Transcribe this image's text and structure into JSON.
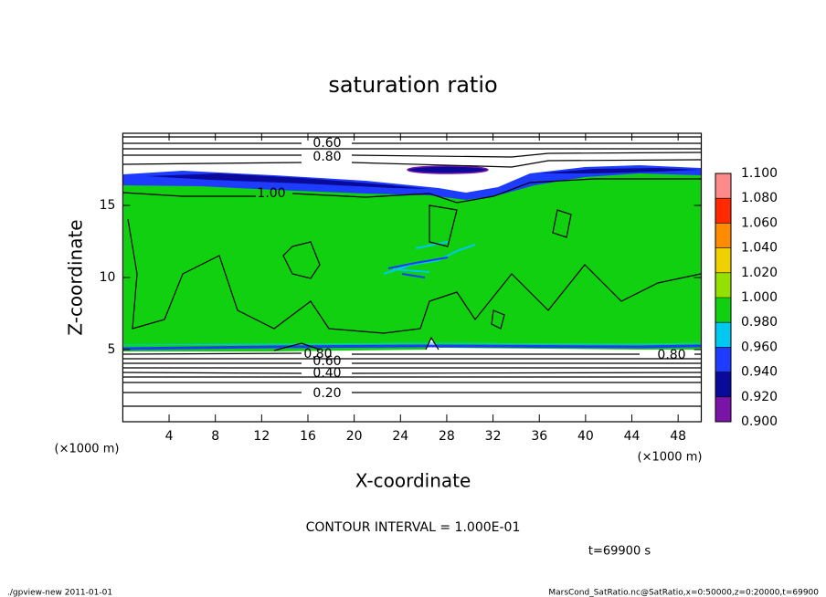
{
  "chart_data": {
    "type": "contour",
    "title": "saturation ratio",
    "xlabel": "X-coordinate",
    "ylabel": "Z-coordinate",
    "xunit": "(×1000 m)",
    "yunit": "(×1000 m)",
    "xlim": [
      0,
      50
    ],
    "ylim": [
      0,
      20
    ],
    "xticks": [
      4,
      8,
      12,
      16,
      20,
      24,
      28,
      32,
      36,
      40,
      44,
      48
    ],
    "yticks": [
      5,
      10,
      15
    ],
    "contour_interval": "CONTOUR INTERVAL = 1.000E-01",
    "time": "t=69900 s",
    "contour_labels": [
      {
        "value": 0.6,
        "label": "0.60"
      },
      {
        "value": 0.8,
        "label": "0.80"
      },
      {
        "value": 1.0,
        "label": "1.00"
      },
      {
        "value": 0.8,
        "label": "0.80"
      },
      {
        "value": 0.6,
        "label": "0.60"
      },
      {
        "value": 0.4,
        "label": "0.40"
      },
      {
        "value": 0.2,
        "label": "0.20"
      },
      {
        "value": 0.8,
        "label": "0.80"
      }
    ],
    "colorbar": {
      "ticks": [
        {
          "value": 0.9,
          "label": "0.900"
        },
        {
          "value": 0.92,
          "label": "0.920"
        },
        {
          "value": 0.94,
          "label": "0.940"
        },
        {
          "value": 0.96,
          "label": "0.960"
        },
        {
          "value": 0.98,
          "label": "0.980"
        },
        {
          "value": 1.0,
          "label": "1.000"
        },
        {
          "value": 1.02,
          "label": "1.020"
        },
        {
          "value": 1.04,
          "label": "1.040"
        },
        {
          "value": 1.06,
          "label": "1.060"
        },
        {
          "value": 1.08,
          "label": "1.080"
        },
        {
          "value": 1.1,
          "label": "1.100"
        }
      ],
      "colors": [
        "#7a14a8",
        "#0a0a9a",
        "#1e3cff",
        "#00c8f0",
        "#10d010",
        "#94e000",
        "#f0d000",
        "#ff8c00",
        "#ff2a00",
        "#ff8a8a"
      ]
    }
  },
  "footer": {
    "left": "./gpview-new   2011-01-01",
    "right": "MarsCond_SatRatio.nc@SatRatio,x=0:50000,z=0:20000,t=69900"
  }
}
